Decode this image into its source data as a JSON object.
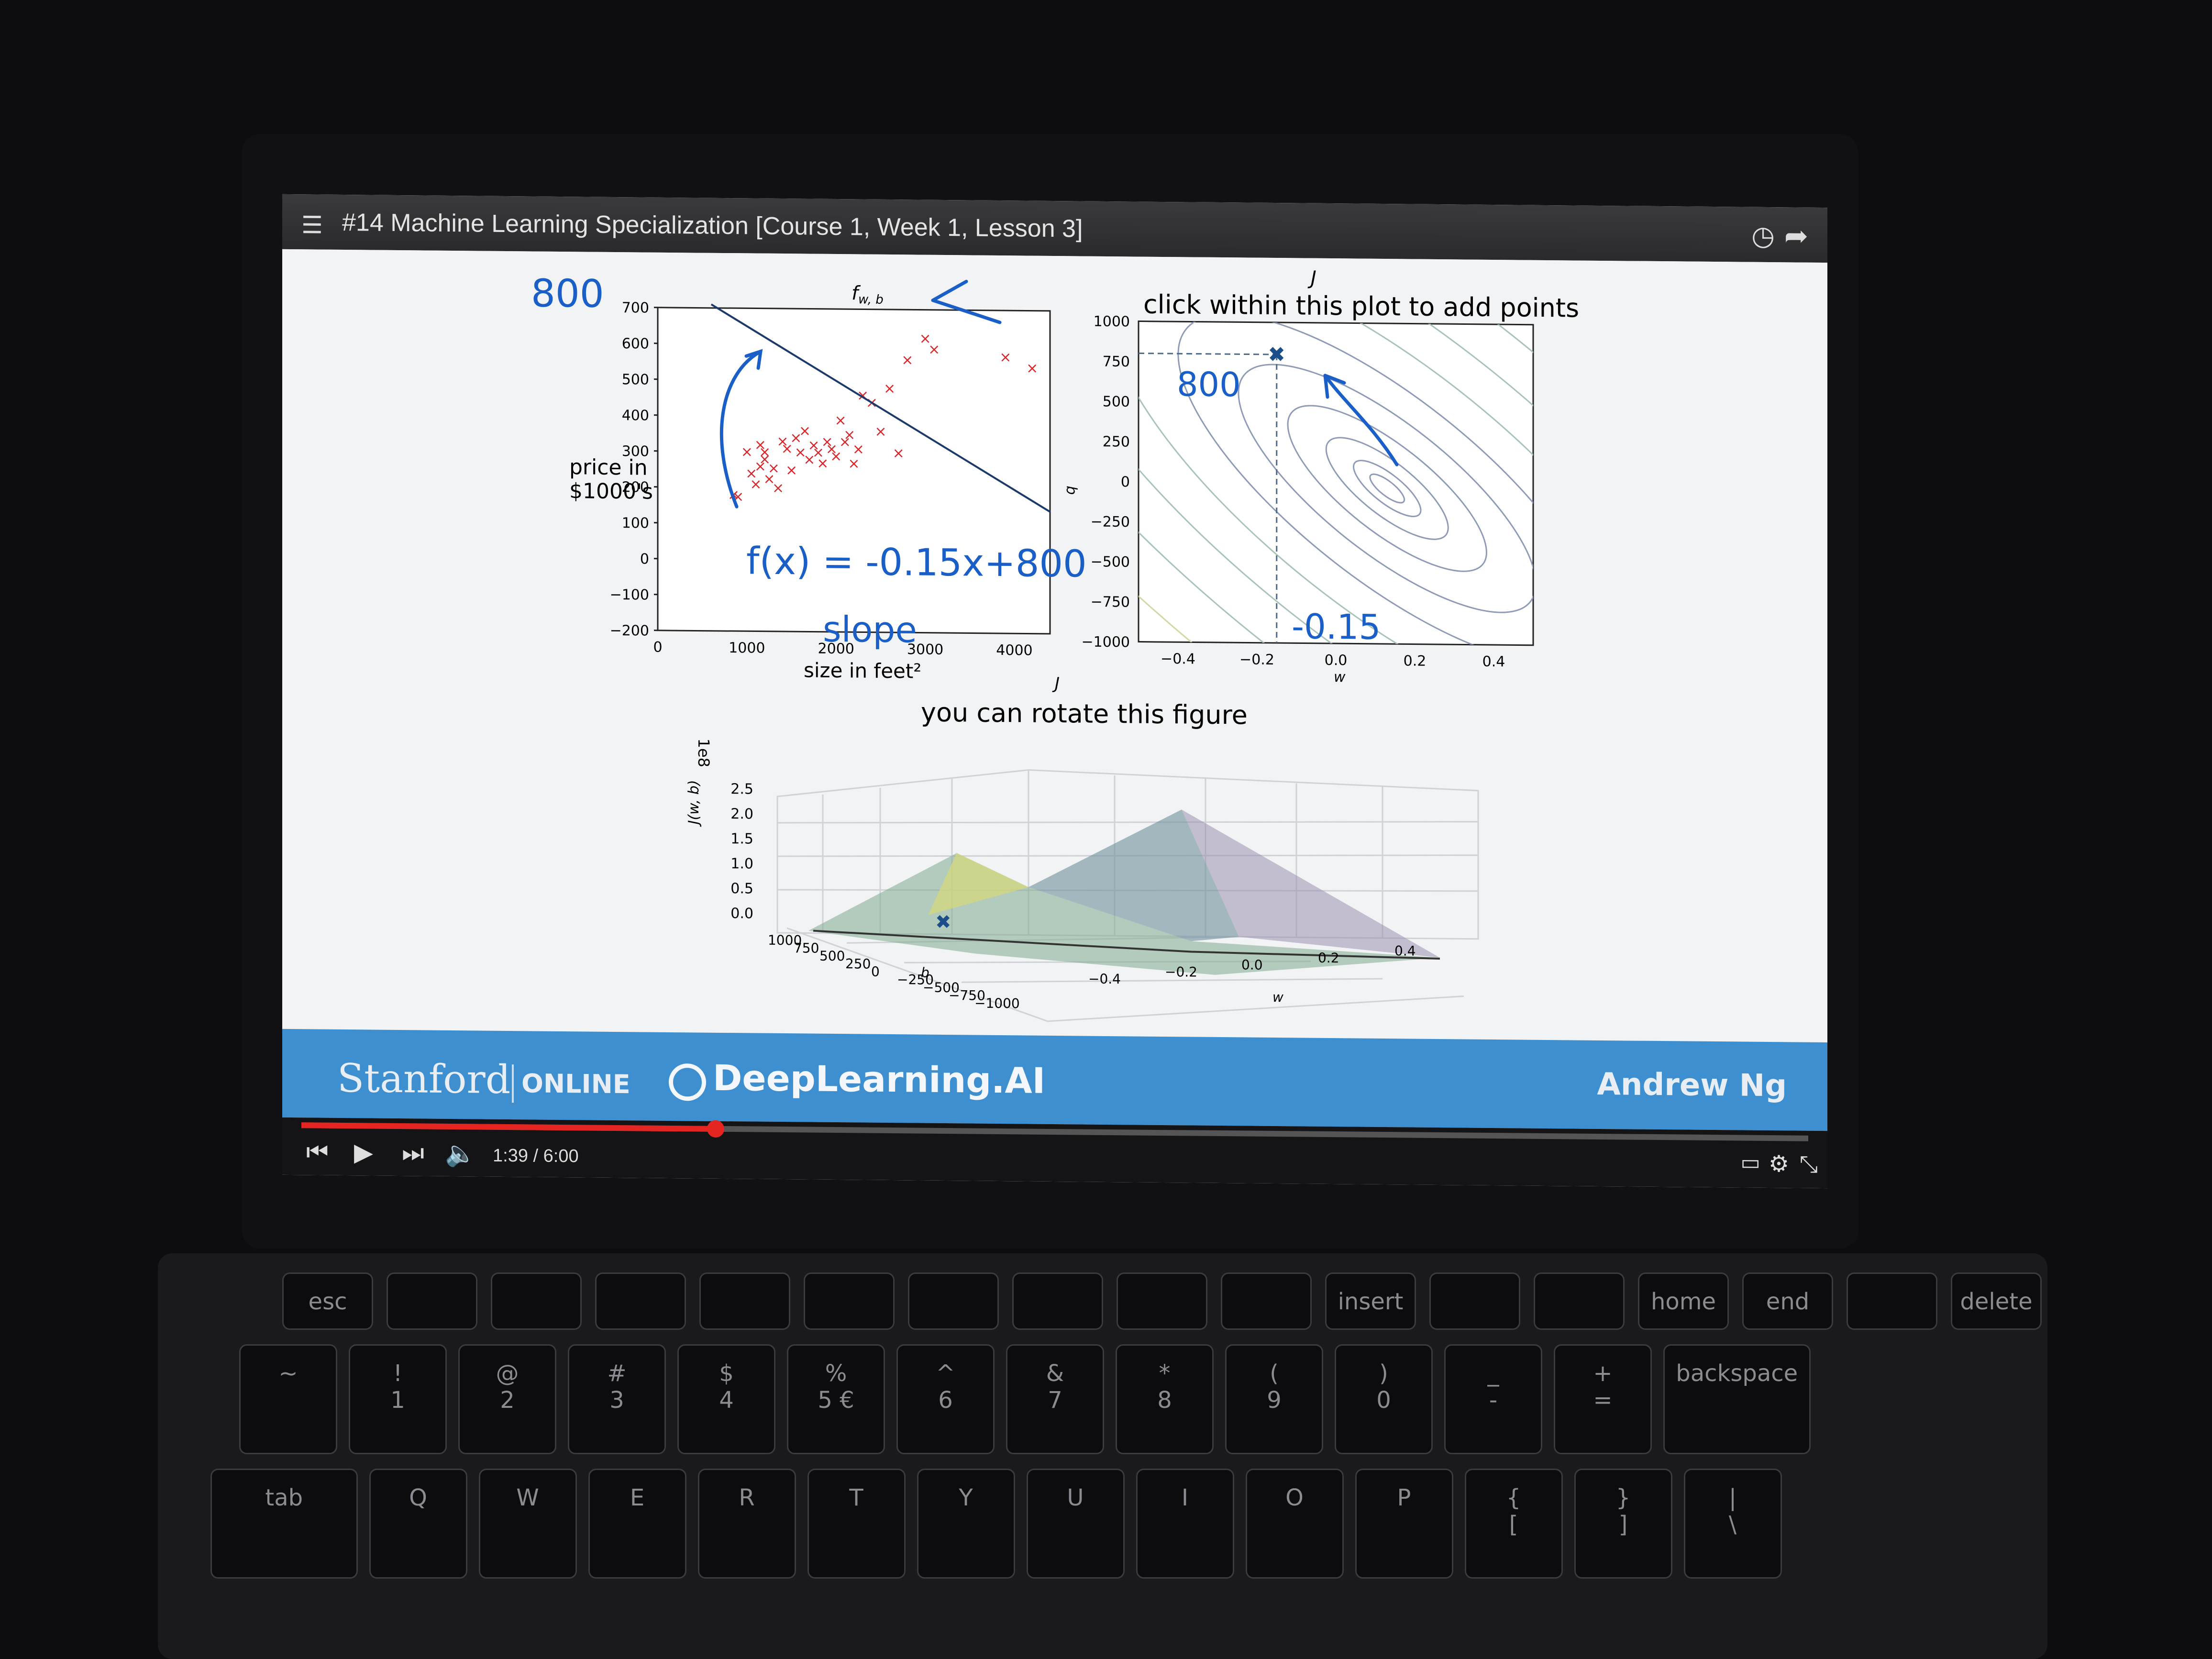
{
  "video": {
    "title": "#14 Machine Learning Specialization [Course 1, Week 1, Lesson 3]",
    "icons": {
      "playlist": "playlist-icon",
      "watch_later": "clock-icon",
      "share": "share-icon"
    }
  },
  "slide": {
    "fwb_label": "f",
    "fwb_sub": "w, b",
    "contour_title": "click within this plot to add points",
    "contour_j_label": "J",
    "surface_j_label": "J",
    "surface_title": "you can rotate this figure",
    "surface_scale": "1e8",
    "surface_zlabel": "J(w, b)",
    "handwritten": {
      "intercept": "800",
      "equation": "f(x) = -0.15x+800",
      "slope": "slope",
      "contour_b": "800",
      "contour_w": "-0.15"
    }
  },
  "chart_data": [
    {
      "type": "scatter",
      "title": "",
      "xlabel": "size in feet²",
      "ylabel": "price in $1000's",
      "xlim": [
        0,
        4400
      ],
      "ylim": [
        -200,
        700
      ],
      "xticks": [
        "0",
        "1000",
        "2000",
        "3000",
        "4000"
      ],
      "yticks": [
        "700",
        "600",
        "500",
        "400",
        "300",
        "200",
        "100",
        "0",
        "−100",
        "−200"
      ],
      "points": [
        [
          850,
          180
        ],
        [
          900,
          175
        ],
        [
          1050,
          240
        ],
        [
          1100,
          210
        ],
        [
          1150,
          260
        ],
        [
          1200,
          300
        ],
        [
          1250,
          225
        ],
        [
          1300,
          255
        ],
        [
          1350,
          200
        ],
        [
          1400,
          330
        ],
        [
          1450,
          310
        ],
        [
          1500,
          250
        ],
        [
          1550,
          340
        ],
        [
          1600,
          300
        ],
        [
          1650,
          360
        ],
        [
          1700,
          280
        ],
        [
          1750,
          320
        ],
        [
          1800,
          300
        ],
        [
          1850,
          270
        ],
        [
          1900,
          330
        ],
        [
          1950,
          310
        ],
        [
          2000,
          290
        ],
        [
          2050,
          390
        ],
        [
          2100,
          330
        ],
        [
          2150,
          350
        ],
        [
          2200,
          270
        ],
        [
          2250,
          310
        ],
        [
          2300,
          460
        ],
        [
          2400,
          440
        ],
        [
          2500,
          360
        ],
        [
          2600,
          480
        ],
        [
          2700,
          300
        ],
        [
          2800,
          560
        ],
        [
          3000,
          620
        ],
        [
          3100,
          590
        ],
        [
          3900,
          570
        ],
        [
          4200,
          540
        ],
        [
          1000,
          300
        ],
        [
          1150,
          320
        ],
        [
          1200,
          280
        ]
      ],
      "line": {
        "slope": -0.15,
        "intercept": 800
      }
    },
    {
      "type": "contour",
      "title": "click within this plot to add points",
      "xlabel": "w",
      "ylabel": "b",
      "xlim": [
        -0.5,
        0.5
      ],
      "ylim": [
        -1000,
        1000
      ],
      "xticks": [
        "−0.4",
        "−0.2",
        "0.0",
        "0.2",
        "0.4"
      ],
      "yticks": [
        "1000",
        "750",
        "500",
        "250",
        "0",
        "−250",
        "−500",
        "−750",
        "−1000"
      ],
      "marker": {
        "w": -0.15,
        "b": 800
      }
    },
    {
      "type": "surface",
      "title": "you can rotate this figure",
      "xlabel": "w",
      "ylabel": "b",
      "zlabel": "J(w, b)",
      "zticks": [
        "2.5",
        "2.0",
        "1.5",
        "1.0",
        "0.5",
        "0.0"
      ],
      "bticks": [
        "1000",
        "750",
        "500",
        "250",
        "0",
        "−250",
        "−500",
        "−750",
        "−1000"
      ],
      "wticks": [
        "−0.4",
        "−0.2",
        "0.0",
        "0.2",
        "0.4"
      ]
    }
  ],
  "banner": {
    "stanford": "Stanford",
    "online": "ONLINE",
    "deeplearning": "DeepLearning.AI",
    "presenter": "Andrew Ng"
  },
  "player": {
    "time": "1:39 / 6:00",
    "progress": 0.275,
    "icons": [
      "previous-icon",
      "play-icon",
      "next-icon",
      "volume-icon",
      "subtitles-icon",
      "settings-icon",
      "exit-fullscreen-icon"
    ]
  },
  "keyboard": {
    "fn_row": [
      "esc",
      "",
      "",
      "",
      "",
      "",
      "",
      "",
      "",
      "",
      "insert",
      "",
      "",
      "home",
      "end",
      "",
      "delete"
    ],
    "num_row": [
      "~",
      "!\n1",
      "@\n2",
      "#\n3",
      "$\n4",
      "%\n5 €",
      "^\n6",
      "&\n7",
      "*\n8",
      "(\n9",
      ")\n0",
      "_\n-",
      "+\n=",
      "backspace"
    ],
    "q_row": [
      "tab",
      "Q",
      "W",
      "E",
      "R",
      "T",
      "Y",
      "U",
      "I",
      "O",
      "P",
      "{\n[",
      "}\n]",
      "|\n\\"
    ]
  }
}
